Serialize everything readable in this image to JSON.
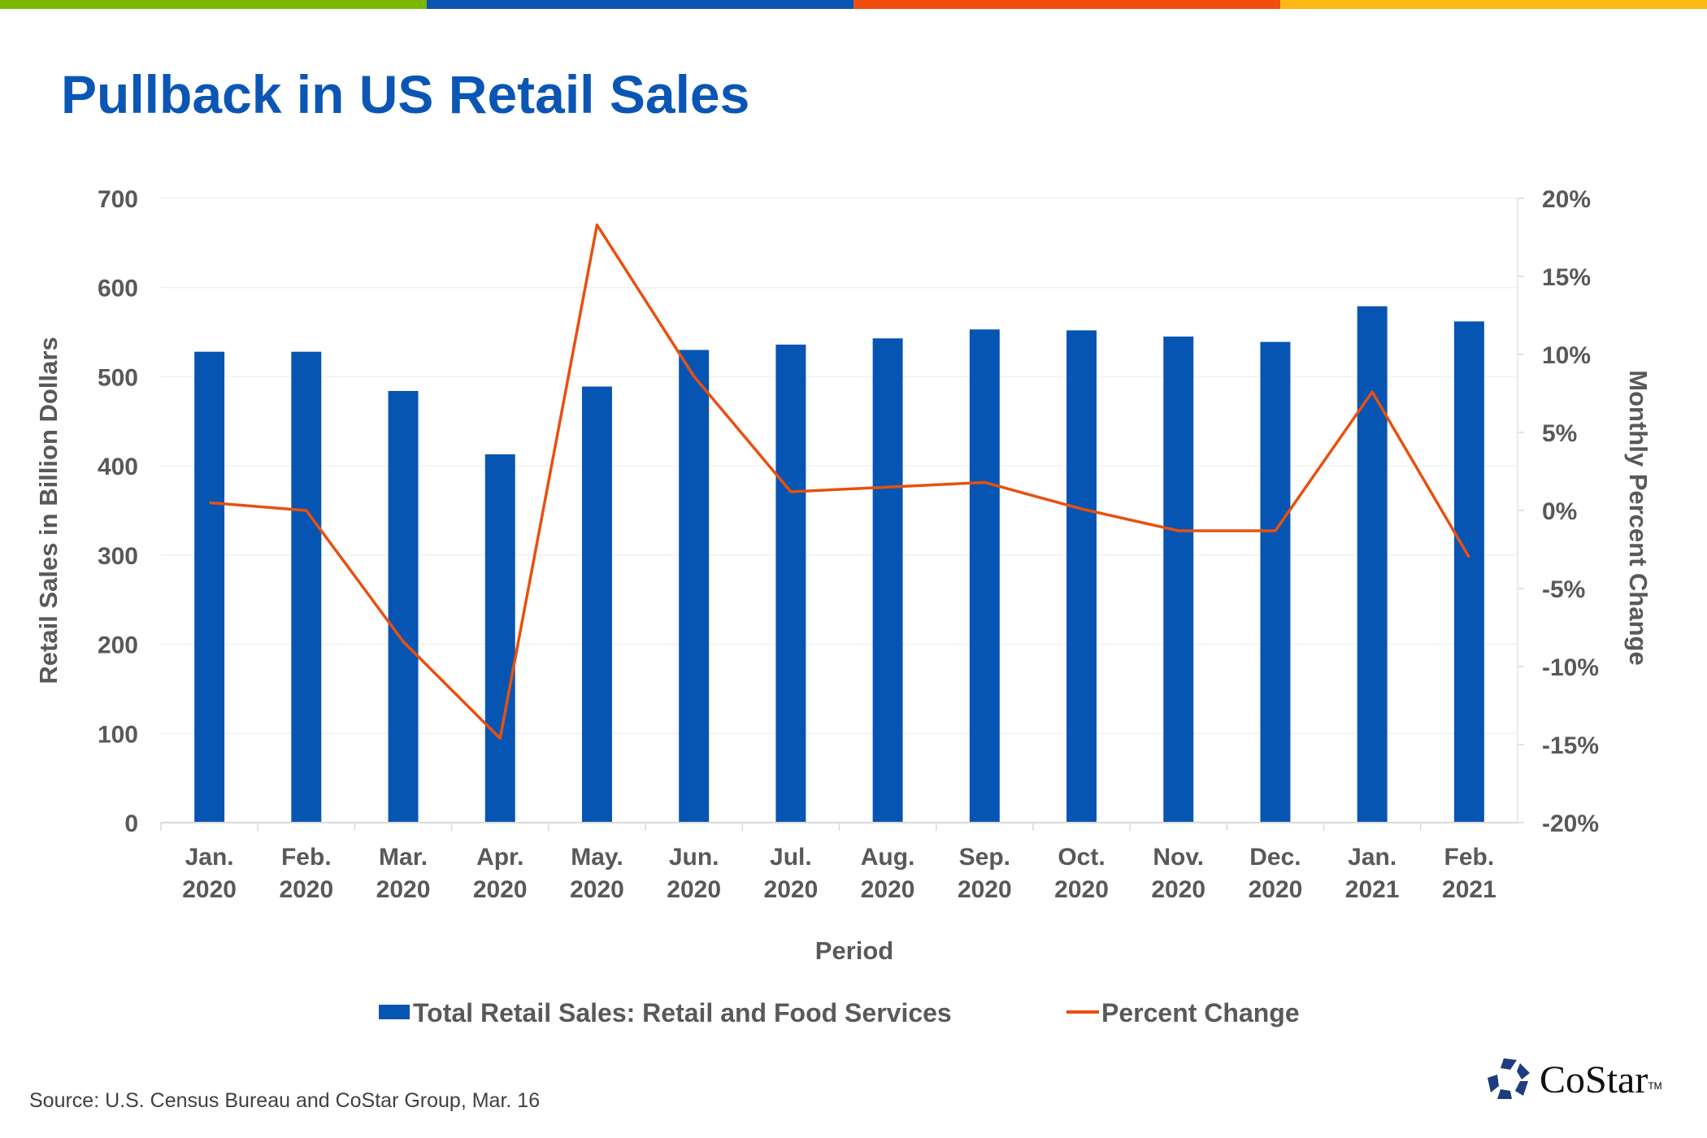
{
  "header": {
    "title": "Pullback in US Retail Sales",
    "stripe_colors": [
      "#7AB800",
      "#0A55B3",
      "#F04E0F",
      "#FDB813"
    ]
  },
  "chart_data": {
    "type": "bar+line",
    "categories": [
      [
        "Jan.",
        "2020"
      ],
      [
        "Feb.",
        "2020"
      ],
      [
        "Mar.",
        "2020"
      ],
      [
        "Apr.",
        "2020"
      ],
      [
        "May.",
        "2020"
      ],
      [
        "Jun.",
        "2020"
      ],
      [
        "Jul.",
        "2020"
      ],
      [
        "Aug.",
        "2020"
      ],
      [
        "Sep.",
        "2020"
      ],
      [
        "Oct.",
        "2020"
      ],
      [
        "Nov.",
        "2020"
      ],
      [
        "Dec.",
        "2020"
      ],
      [
        "Jan.",
        "2021"
      ],
      [
        "Feb.",
        "2021"
      ]
    ],
    "series": [
      {
        "name": "Total Retail Sales: Retail and Food Services",
        "type": "bar",
        "axis": "left",
        "color": "#0755B3",
        "values": [
          528,
          528,
          484,
          413,
          489,
          530,
          536,
          543,
          553,
          552,
          545,
          539,
          579,
          562
        ]
      },
      {
        "name": "Percent Change",
        "type": "line",
        "axis": "right",
        "color": "#E8500F",
        "values": [
          0.5,
          0.0,
          -8.4,
          -14.6,
          18.3,
          8.6,
          1.2,
          1.5,
          1.8,
          0.1,
          -1.3,
          -1.3,
          7.6,
          -3.0
        ]
      }
    ],
    "xlabel": "Period",
    "ylabel": "Retail Sales in Billion Dollars",
    "y2label": "Monthly Percent Change",
    "ylim": [
      0,
      700
    ],
    "yticks": [
      "0",
      "100",
      "200",
      "300",
      "400",
      "500",
      "600",
      "700"
    ],
    "y2lim": [
      -20,
      20
    ],
    "y2ticks": [
      "-20%",
      "-15%",
      "-10%",
      "-5%",
      "0%",
      "5%",
      "10%",
      "15%",
      "20%"
    ],
    "grid": true,
    "legend": "bottom"
  },
  "footer": {
    "source": "Source: U.S. Census Bureau and CoStar Group, Mar. 16",
    "logo_text": "CoStar",
    "logo_tm": "TM"
  }
}
